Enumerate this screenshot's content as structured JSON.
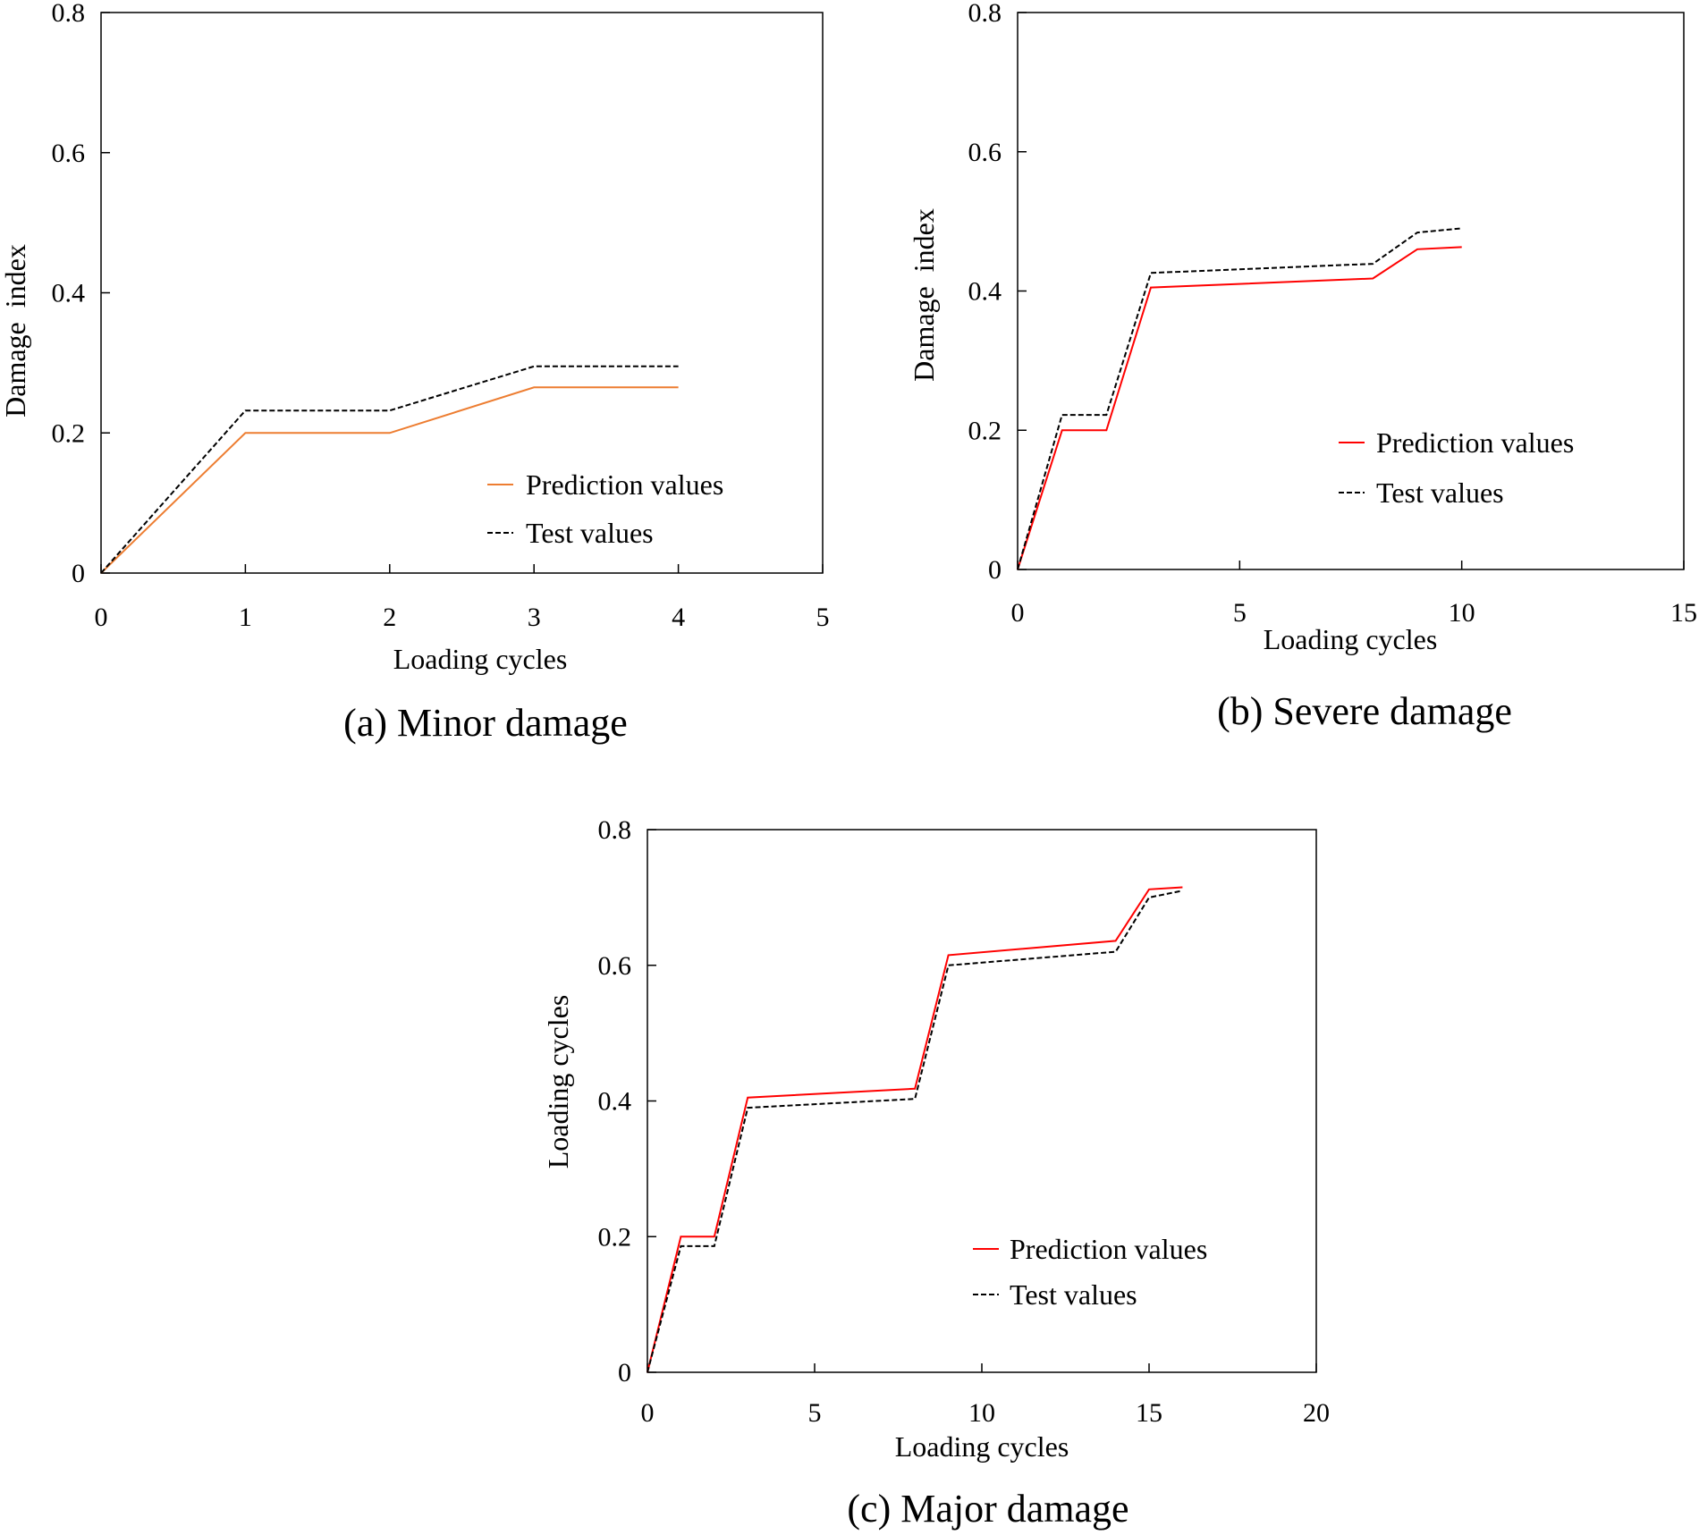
{
  "chart_data": [
    {
      "type": "line",
      "caption": "(a) Minor damage",
      "xlabel": "Loading cycles",
      "ylabel": "Damage  index",
      "xlim": [
        0,
        5
      ],
      "ylim": [
        0,
        0.8
      ],
      "xticks": [
        0,
        1,
        2,
        3,
        4,
        5
      ],
      "xtick_labels": [
        "0",
        "1",
        "2",
        "3",
        "4",
        "5"
      ],
      "yticks": [
        0,
        0.2,
        0.4,
        0.6,
        0.8
      ],
      "ytick_labels": [
        "0",
        "0.2",
        "0.4",
        "0.6",
        "0.8"
      ],
      "legend_position": "lower-right",
      "series": [
        {
          "name": "Prediction values",
          "color": "#ED7D31",
          "dash": "solid",
          "x": [
            0,
            1,
            2,
            3,
            4
          ],
          "y": [
            0,
            0.2,
            0.2,
            0.265,
            0.265
          ]
        },
        {
          "name": "Test values",
          "color": "#000000",
          "dash": "dashed",
          "x": [
            0,
            1,
            2,
            3,
            4
          ],
          "y": [
            0,
            0.232,
            0.232,
            0.295,
            0.295
          ]
        }
      ]
    },
    {
      "type": "line",
      "caption": "(b) Severe damage",
      "xlabel": "Loading cycles",
      "ylabel": "Damage  index",
      "xlim": [
        0,
        15
      ],
      "ylim": [
        0,
        0.8
      ],
      "xticks": [
        0,
        5,
        10,
        15
      ],
      "xtick_labels": [
        "0",
        "5",
        "10",
        "15"
      ],
      "yticks": [
        0,
        0.2,
        0.4,
        0.6,
        0.8
      ],
      "ytick_labels": [
        "0",
        "0.2",
        "0.4",
        "0.6",
        "0.8"
      ],
      "legend_position": "lower-right",
      "series": [
        {
          "name": "Prediction values",
          "color": "#FF0000",
          "dash": "solid",
          "x": [
            0,
            1,
            2,
            3,
            8,
            9,
            10
          ],
          "y": [
            0,
            0.2,
            0.2,
            0.405,
            0.418,
            0.46,
            0.463
          ]
        },
        {
          "name": "Test values",
          "color": "#000000",
          "dash": "dashed",
          "x": [
            0,
            1,
            2,
            3,
            8,
            9,
            10
          ],
          "y": [
            0,
            0.222,
            0.222,
            0.426,
            0.439,
            0.484,
            0.49
          ]
        }
      ]
    },
    {
      "type": "line",
      "caption": "(c) Major damage",
      "xlabel": "Loading cycles",
      "ylabel": "Loading cycles",
      "xlim": [
        0,
        20
      ],
      "ylim": [
        0,
        0.8
      ],
      "xticks": [
        0,
        5,
        10,
        15,
        20
      ],
      "xtick_labels": [
        "0",
        "5",
        "10",
        "15",
        "20"
      ],
      "yticks": [
        0,
        0.2,
        0.4,
        0.6,
        0.8
      ],
      "ytick_labels": [
        "0",
        "0.2",
        "0.4",
        "0.6",
        "0.8"
      ],
      "legend_position": "lower-right",
      "series": [
        {
          "name": "Prediction values",
          "color": "#FF0000",
          "dash": "solid",
          "x": [
            0,
            1,
            2,
            3,
            8,
            9,
            14,
            15,
            16
          ],
          "y": [
            0,
            0.2,
            0.2,
            0.405,
            0.418,
            0.615,
            0.636,
            0.712,
            0.715
          ]
        },
        {
          "name": "Test values",
          "color": "#000000",
          "dash": "dashed",
          "x": [
            0,
            1,
            2,
            3,
            8,
            9,
            14,
            15,
            16
          ],
          "y": [
            0,
            0.186,
            0.186,
            0.39,
            0.403,
            0.6,
            0.62,
            0.7,
            0.71
          ]
        }
      ]
    }
  ]
}
